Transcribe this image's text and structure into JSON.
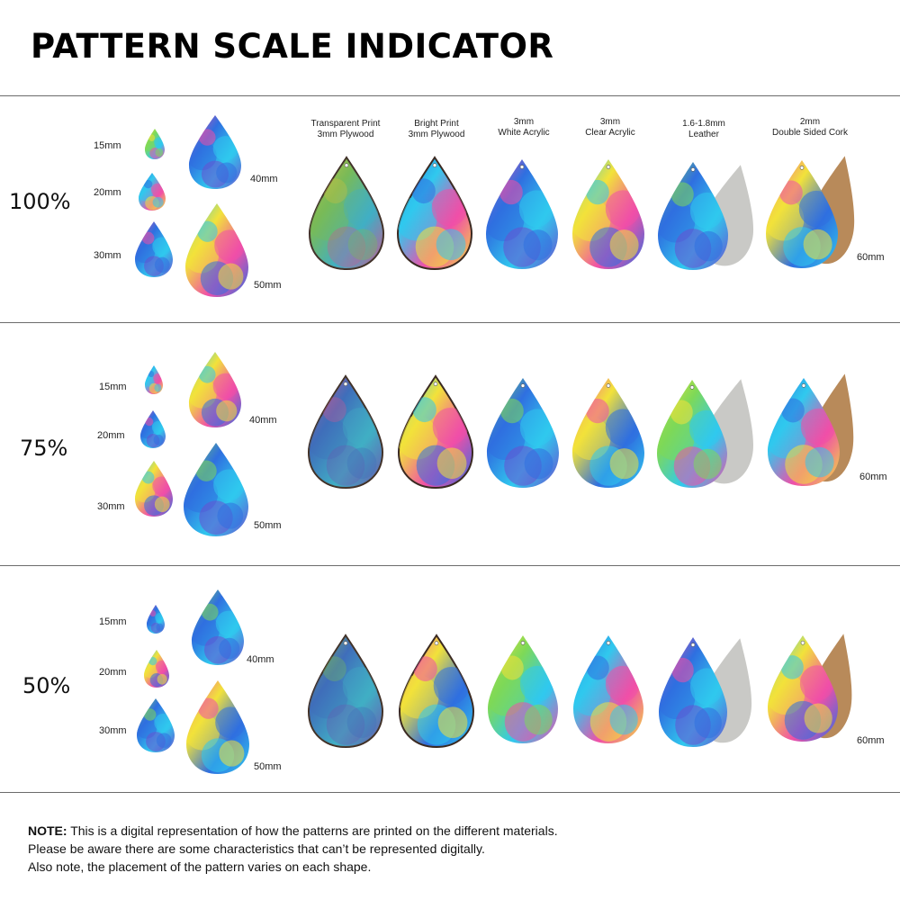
{
  "title": "PATTERN SCALE INDICATOR",
  "materials": [
    {
      "line1": "Transparent Print",
      "line2": "3mm Plywood"
    },
    {
      "line1": "Bright Print",
      "line2": "3mm Plywood"
    },
    {
      "line1": "3mm",
      "line2": "White Acrylic"
    },
    {
      "line1": "3mm",
      "line2": "Clear Acrylic"
    },
    {
      "line1": "1.6-1.8mm",
      "line2": "Leather"
    },
    {
      "line1": "2mm",
      "line2": "Double Sided Cork"
    }
  ],
  "sizes": {
    "s15": "15mm",
    "s20": "20mm",
    "s30": "30mm",
    "s40": "40mm",
    "s50": "50mm",
    "s60": "60mm"
  },
  "sections": [
    {
      "scale": "100%"
    },
    {
      "scale": "75%"
    },
    {
      "scale": "50%"
    }
  ],
  "note": {
    "bold": "NOTE:",
    "line1": " This is a digital representation of how the patterns are printed on the different materials.",
    "line2": "Please be aware there are some characteristics that can’t be represented digitally.",
    "line3": "Also note, the placement of the pattern varies on each shape."
  },
  "colors": {
    "pink": "#f04fa8",
    "blue": "#2f6fe0",
    "cyan": "#30c9ee",
    "yellow": "#f2e23a",
    "green": "#7ed957",
    "purple": "#6a4fd0",
    "leather": "#c9c9c6",
    "cork": "#b88a5a"
  }
}
